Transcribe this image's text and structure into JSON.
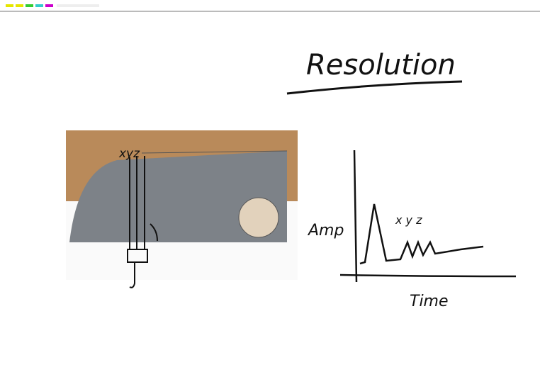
{
  "title": "Resolution",
  "photo_label": "xyz",
  "sketch": {
    "y_label": "Amp",
    "x_label": "Time",
    "peak_labels": "x y z"
  }
}
